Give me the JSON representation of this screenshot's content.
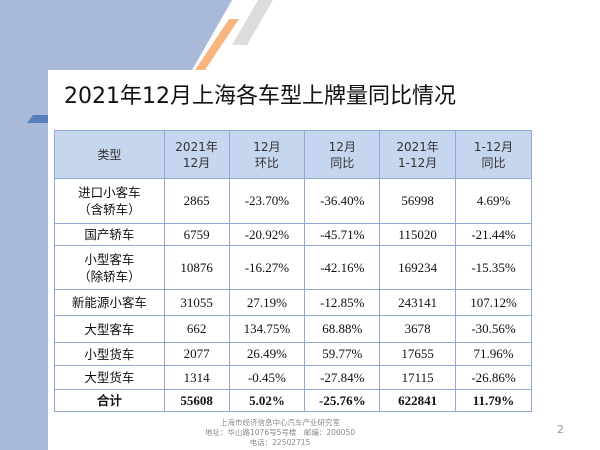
{
  "title": "2021年12月上海各车型上牌量同比情况",
  "colors": {
    "header_bg": "#c6d6ee",
    "border": "#8fa9d5",
    "bg_blue": "#a9bad9",
    "accent_orange": "#f8b57e",
    "bar_blue": "#5a7fbf"
  },
  "table": {
    "headers": [
      [
        "类型",
        ""
      ],
      [
        "2021年",
        "12月"
      ],
      [
        "12月",
        "环比"
      ],
      [
        "12月",
        "同比"
      ],
      [
        "2021年",
        "1-12月"
      ],
      [
        "1-12月",
        "同比"
      ]
    ],
    "rows": [
      {
        "name": [
          "进口小客车",
          "（含轿车）"
        ],
        "values": [
          "2865",
          "-23.70%",
          "-36.40%",
          "56998",
          "4.69%"
        ]
      },
      {
        "name": [
          "国产轿车",
          ""
        ],
        "values": [
          "6759",
          "-20.92%",
          "-45.71%",
          "115020",
          "-21.44%"
        ]
      },
      {
        "name": [
          "小型客车",
          "（除轿车）"
        ],
        "values": [
          "10876",
          "-16.27%",
          "-42.16%",
          "169234",
          "-15.35%"
        ]
      },
      {
        "name": [
          "新能源小客车",
          ""
        ],
        "values": [
          "31055",
          "27.19%",
          "-12.85%",
          "243141",
          "107.12%"
        ]
      },
      {
        "name": [
          "大型客车",
          ""
        ],
        "values": [
          "662",
          "134.75%",
          "68.88%",
          "3678",
          "-30.56%"
        ]
      },
      {
        "name": [
          "小型货车",
          ""
        ],
        "values": [
          "2077",
          "26.49%",
          "59.77%",
          "17655",
          "71.96%"
        ]
      },
      {
        "name": [
          "大型货车",
          ""
        ],
        "values": [
          "1314",
          "-0.45%",
          "-27.84%",
          "17115",
          "-26.86%"
        ]
      },
      {
        "name": [
          "合计",
          ""
        ],
        "values": [
          "55608",
          "5.02%",
          "-25.76%",
          "622841",
          "11.79%"
        ]
      }
    ]
  },
  "footer": {
    "line1": "上海市经济信息中心汽车产业研究室",
    "line2": "地址：华山路1076号5号楼　邮编：200050",
    "line3": "电话：22502715"
  },
  "page_number": "2"
}
